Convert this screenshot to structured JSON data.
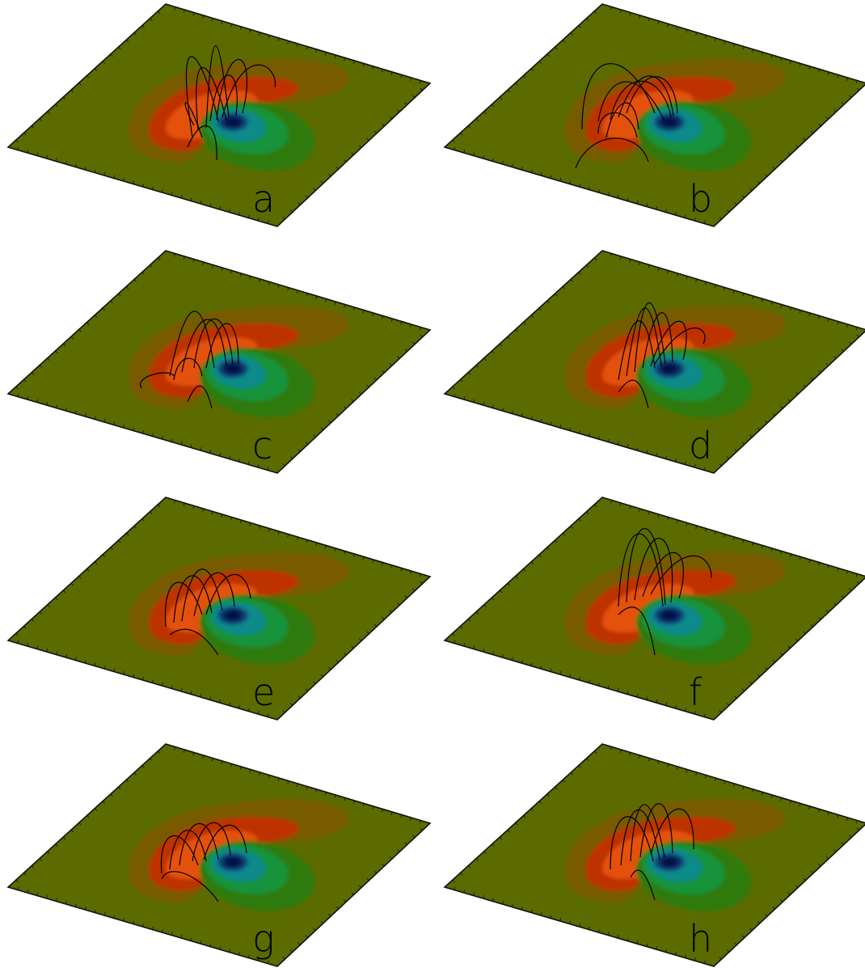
{
  "panels": [
    {
      "label": "a"
    },
    {
      "label": "b"
    },
    {
      "label": "c"
    },
    {
      "label": "d"
    },
    {
      "label": "e"
    },
    {
      "label": "f"
    },
    {
      "label": "g"
    },
    {
      "label": "h"
    }
  ],
  "colors": {
    "plane": "#5b6b00",
    "outline": "#111111",
    "positive_outer": "#7a5a00",
    "positive_mid": "#c23200",
    "positive_core": "#e8540a",
    "negative_outer": "#2f7a10",
    "negative_mid": "#15933a",
    "negative_inner": "#0b8a8a",
    "negative_core": "#041650",
    "field_lines": "#000000"
  }
}
